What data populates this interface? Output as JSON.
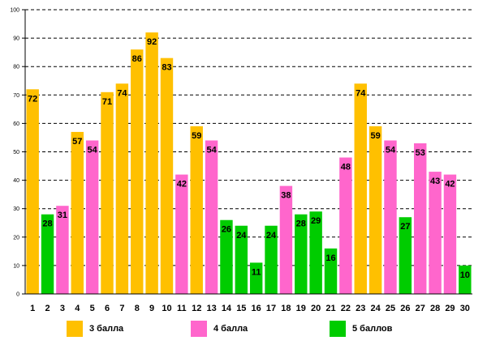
{
  "chart_data": {
    "type": "bar",
    "title": "",
    "xlabel": "",
    "ylabel": "",
    "ylim": [
      0,
      100
    ],
    "y_ticks": [
      0,
      10,
      20,
      30,
      40,
      50,
      60,
      70,
      80,
      90,
      100
    ],
    "grid": true,
    "categories": [
      "1",
      "2",
      "3",
      "4",
      "5",
      "6",
      "7",
      "8",
      "9",
      "10",
      "11",
      "12",
      "13",
      "14",
      "15",
      "16",
      "17",
      "18",
      "19",
      "20",
      "21",
      "22",
      "23",
      "24",
      "25",
      "26",
      "27",
      "28",
      "29",
      "30"
    ],
    "values": [
      72,
      28,
      31,
      57,
      54,
      71,
      74,
      86,
      92,
      83,
      42,
      59,
      54,
      26,
      24,
      11,
      24,
      38,
      28,
      29,
      16,
      48,
      74,
      59,
      54,
      27,
      53,
      43,
      42,
      10
    ],
    "bar_series": [
      "3",
      "5",
      "4",
      "3",
      "4",
      "3",
      "3",
      "3",
      "3",
      "3",
      "4",
      "3",
      "4",
      "5",
      "5",
      "5",
      "5",
      "4",
      "5",
      "5",
      "5",
      "4",
      "3",
      "3",
      "4",
      "5",
      "4",
      "4",
      "4",
      "5"
    ],
    "series": [
      {
        "key": "3",
        "name": "3 балла",
        "color": "#FFC000"
      },
      {
        "key": "4",
        "name": "4 балла",
        "color": "#FF66CC"
      },
      {
        "key": "5",
        "name": "5 баллов",
        "color": "#00CC00"
      }
    ],
    "legend_position": "bottom"
  }
}
